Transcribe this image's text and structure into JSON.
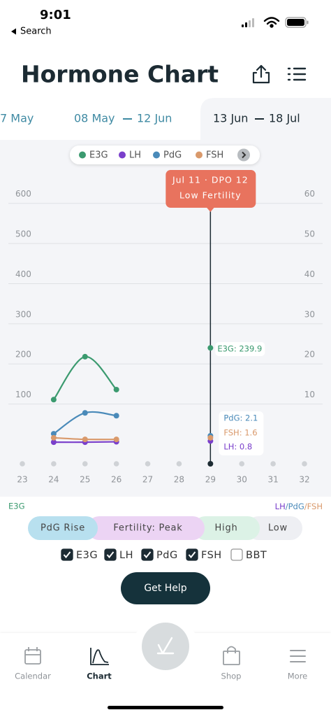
{
  "status_bar": {
    "time": "9:01",
    "back": "Search"
  },
  "header": {
    "title": "Hormone Chart"
  },
  "date_tabs": [
    {
      "start": "7 May"
    },
    {
      "start": "08 May",
      "end": "12 Jun"
    },
    {
      "start": "13 Jun",
      "end": "18 Jul",
      "active": true
    }
  ],
  "chart_data": {
    "type": "line",
    "x": [
      23,
      24,
      25,
      26,
      27,
      28,
      29,
      30,
      31,
      32
    ],
    "xlim": [
      22.5,
      32.5
    ],
    "selected": 29,
    "ylim": [
      0,
      650
    ],
    "yticks": [
      100,
      200,
      300,
      400,
      500,
      600
    ],
    "y2lim": [
      0,
      65
    ],
    "y2ticks": [
      10,
      20,
      30,
      40,
      50,
      60
    ],
    "ylabel": "E3G",
    "y2label": "LH/PdG/FSH",
    "grid": true,
    "series": [
      {
        "name": "E3G",
        "color": "#3b9a6f",
        "values": [
          null,
          111,
          218,
          136,
          null,
          null,
          239.9,
          null,
          null,
          null
        ]
      },
      {
        "name": "LH",
        "color": "#7a3fcb",
        "axis": "y2",
        "values": [
          null,
          0.5,
          0.5,
          0.6,
          null,
          null,
          0.8,
          null,
          null,
          null
        ]
      },
      {
        "name": "PdG",
        "color": "#4a8ab9",
        "axis": "y2",
        "values": [
          null,
          2.6,
          7.8,
          7.1,
          null,
          null,
          2.1,
          null,
          null,
          null
        ]
      },
      {
        "name": "FSH",
        "color": "#d9996b",
        "axis": "y2",
        "values": [
          null,
          1.6,
          1.2,
          1.2,
          null,
          null,
          1.6,
          null,
          null,
          null
        ]
      }
    ],
    "tooltip": {
      "title": "Jul 11 · DPO 12",
      "subtitle": "Low Fertility"
    },
    "callouts": [
      {
        "text": "E3G: 239.9",
        "color": "#3b9a6f"
      },
      {
        "text": "PdG: 2.1",
        "color": "#4a8ab9"
      },
      {
        "text": "FSH: 1.6",
        "color": "#d9996b"
      },
      {
        "text": "LH: 0.8",
        "color": "#7a3fcb"
      }
    ]
  },
  "phases": [
    "PdG Rise",
    "Fertility: Peak",
    "High",
    "Low"
  ],
  "filters": [
    {
      "label": "E3G",
      "checked": true
    },
    {
      "label": "LH",
      "checked": true
    },
    {
      "label": "PdG",
      "checked": true
    },
    {
      "label": "FSH",
      "checked": true
    },
    {
      "label": "BBT",
      "checked": false
    }
  ],
  "button": "Get Help",
  "tab_bar": [
    {
      "label": "Calendar"
    },
    {
      "label": "Chart",
      "active": true
    },
    {
      "label": "Shop"
    },
    {
      "label": "More"
    }
  ]
}
